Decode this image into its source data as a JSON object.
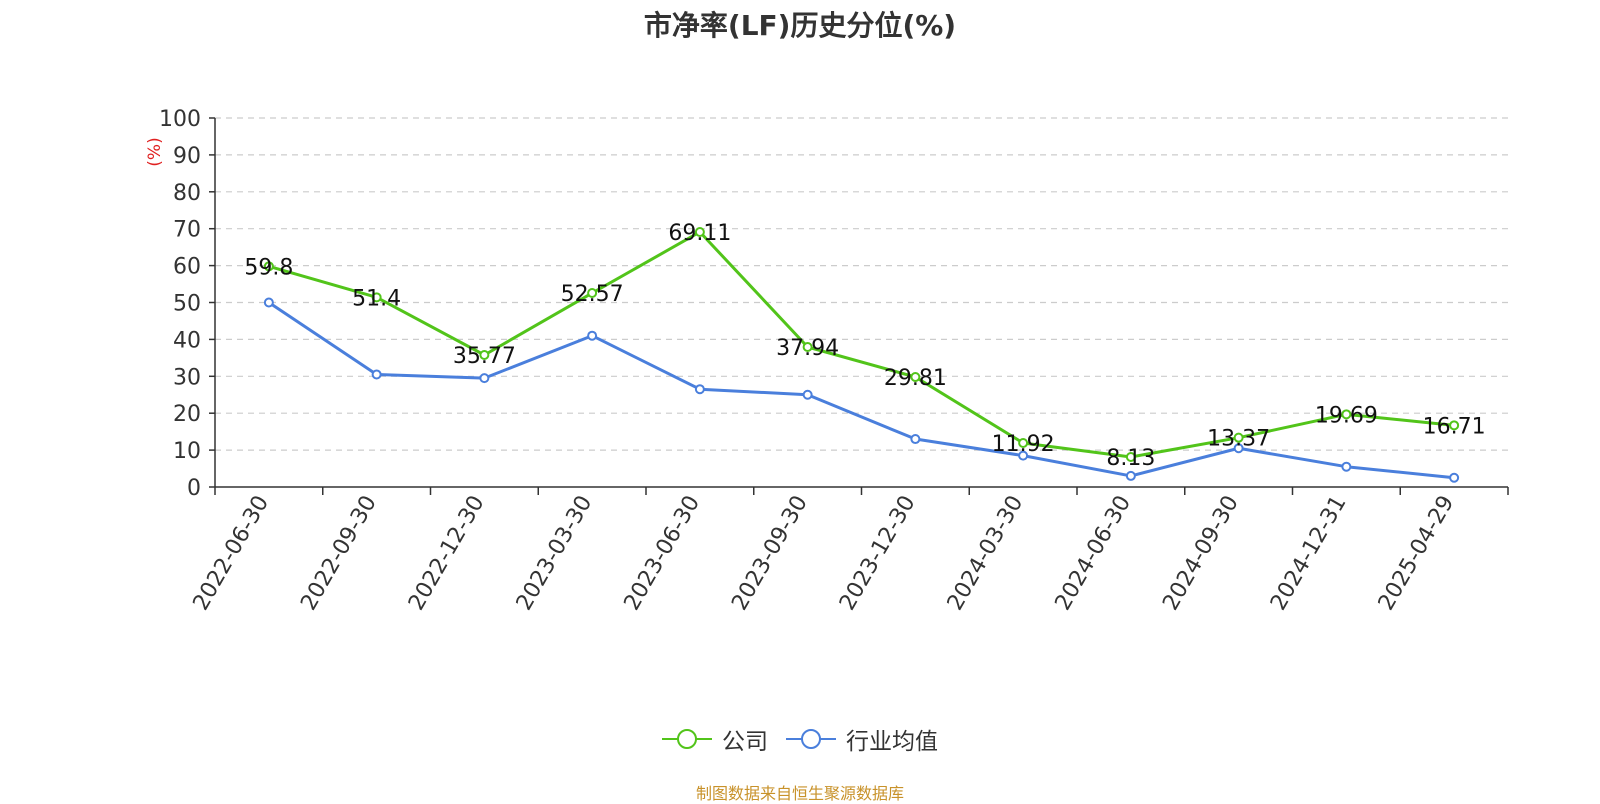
{
  "chart_data": {
    "type": "line",
    "title": "市净率(LF)历史分位(%)",
    "ylabel": "(%)",
    "xlabel": "",
    "ylim": [
      0,
      100
    ],
    "yticks": [
      0,
      10,
      20,
      30,
      40,
      50,
      60,
      70,
      80,
      90,
      100
    ],
    "categories": [
      "2022-06-30",
      "2022-09-30",
      "2022-12-30",
      "2023-03-30",
      "2023-06-30",
      "2023-09-30",
      "2023-12-30",
      "2024-03-30",
      "2024-06-30",
      "2024-09-30",
      "2024-12-31",
      "2025-04-29"
    ],
    "series": [
      {
        "name": "公司",
        "color": "#52c41a",
        "values": [
          59.8,
          51.4,
          35.77,
          52.57,
          69.11,
          37.94,
          29.81,
          11.92,
          8.13,
          13.37,
          19.69,
          16.71
        ],
        "labels": [
          "59.8",
          "51.4",
          "35.77",
          "52.57",
          "69.11",
          "37.94",
          "29.81",
          "11.92",
          "8.13",
          "13.37",
          "19.69",
          "16.71"
        ]
      },
      {
        "name": "行业均值",
        "color": "#4a7fdc",
        "values": [
          50,
          30.5,
          29.5,
          41,
          26.5,
          25,
          13,
          8.5,
          3,
          10.5,
          5.5,
          2.5
        ]
      }
    ],
    "grid": true,
    "legend_position": "bottom-center"
  },
  "footer": {
    "source": "制图数据来自恒生聚源数据库"
  }
}
